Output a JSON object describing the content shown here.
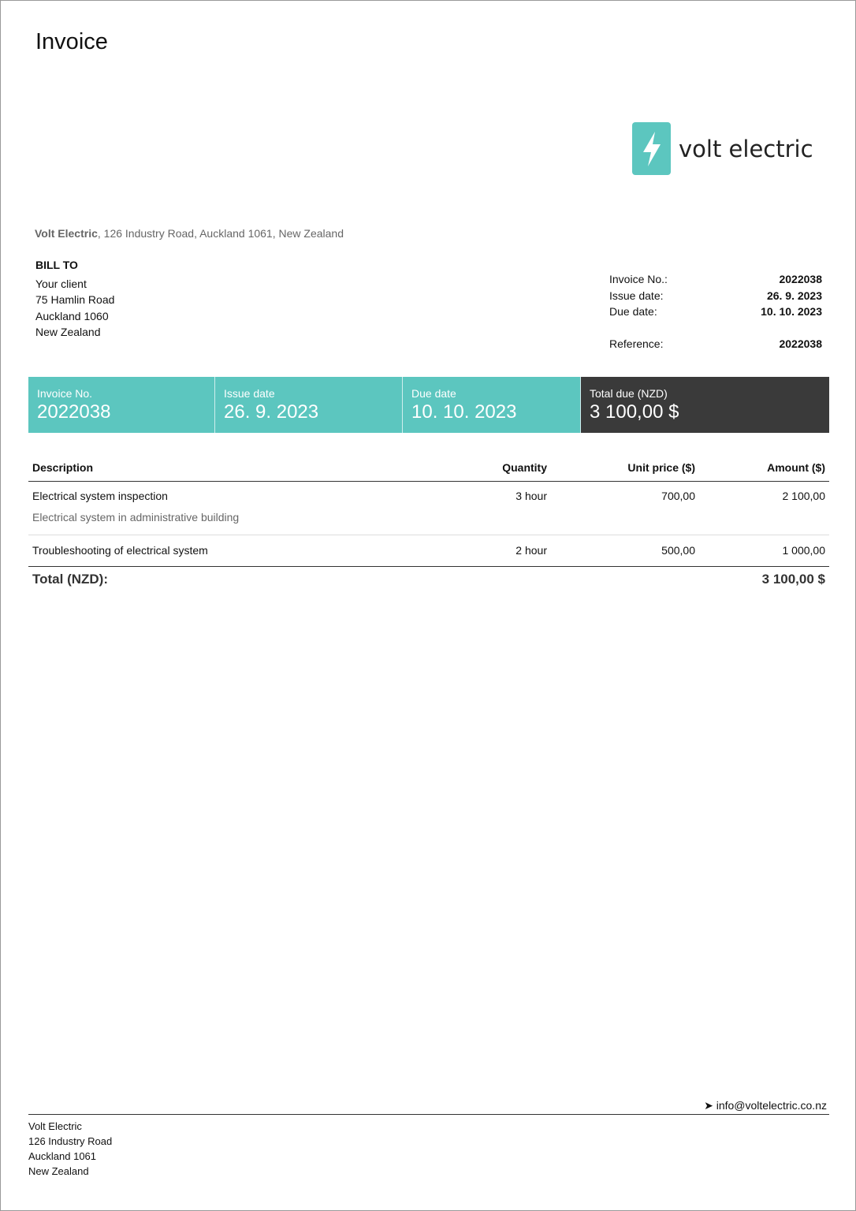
{
  "title": "Invoice",
  "logo": {
    "text": "volt electric",
    "color": "#5cc6bf",
    "icon": "lightning-bolt-icon"
  },
  "sender": {
    "name": "Volt Electric",
    "address": ", 126 Industry Road, Auckland 1061, New Zealand"
  },
  "bill_to": {
    "heading": "BILL TO",
    "lines": [
      "Your client",
      "75 Hamlin Road",
      "Auckland 1060",
      "New Zealand"
    ]
  },
  "meta": [
    {
      "label": "Invoice No.:",
      "value": "2022038"
    },
    {
      "label": "Issue date:",
      "value": "26. 9. 2023"
    },
    {
      "label": "Due date:",
      "value": "10. 10. 2023"
    },
    {
      "label": "Reference:",
      "value": "2022038"
    }
  ],
  "band": [
    {
      "label": "Invoice No.",
      "value": "2022038"
    },
    {
      "label": "Issue date",
      "value": "26. 9. 2023"
    },
    {
      "label": "Due date",
      "value": "10. 10. 2023"
    },
    {
      "label": "Total due (NZD)",
      "value": "3 100,00 $"
    }
  ],
  "table": {
    "headers": [
      "Description",
      "Quantity",
      "Unit price ($)",
      "Amount ($)"
    ],
    "rows": [
      {
        "desc": "Electrical system inspection",
        "note": "Electrical system in administrative building",
        "qty": "3 hour",
        "price": "700,00",
        "amount": "2 100,00"
      },
      {
        "desc": "Troubleshooting of electrical system",
        "qty": "2 hour",
        "price": "500,00",
        "amount": "1 000,00"
      }
    ],
    "total_label": "Total (NZD):",
    "total_value": "3 100,00 $"
  },
  "footer": {
    "email": "info@voltelectric.co.nz",
    "address": [
      "Volt Electric",
      "126 Industry Road",
      "Auckland 1061",
      "New Zealand"
    ]
  }
}
